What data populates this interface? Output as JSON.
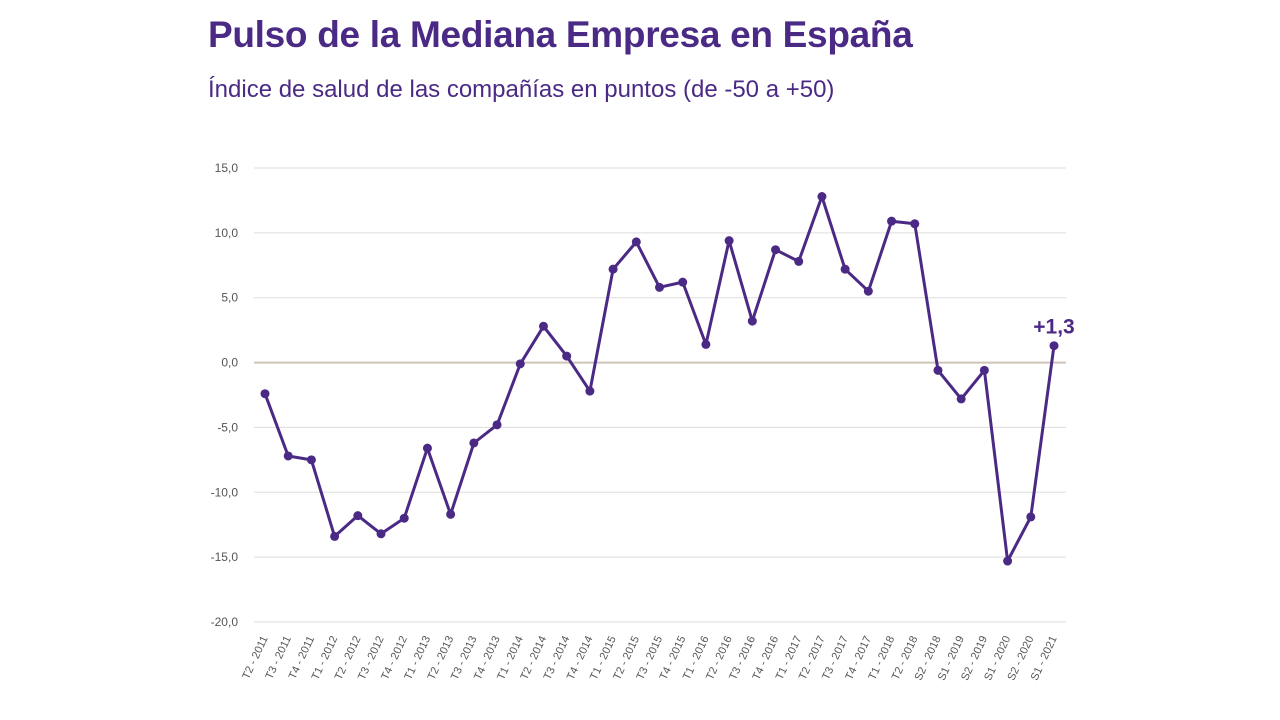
{
  "colors": {
    "line": "#4b2a85",
    "title": "#4b2a85",
    "grid": "#dddddd",
    "zero_line": "#cdc3b8",
    "tick_text": "#555555"
  },
  "chart_data": {
    "type": "line",
    "title": "Pulso de la Mediana Empresa en España",
    "subtitle": "Índice de salud de las compañías en puntos (de -50 a +50)",
    "xlabel": "",
    "ylabel": "",
    "ylim": [
      -20,
      15
    ],
    "yticks": [
      15,
      10,
      5,
      0,
      -5,
      -10,
      -15,
      -20
    ],
    "ytick_labels": [
      "15,0",
      "10,0",
      "5,0",
      "0,0",
      "-5,0",
      "-10,0",
      "-15,0",
      "-20,0"
    ],
    "grid": true,
    "categories": [
      "T2 - 2011",
      "T3 - 2011",
      "T4 - 2011",
      "T1 - 2012",
      "T2 - 2012",
      "T3 - 2012",
      "T4 - 2012",
      "T1 - 2013",
      "T2 - 2013",
      "T3 - 2013",
      "T4 - 2013",
      "T1 - 2014",
      "T2 - 2014",
      "T3 - 2014",
      "T4 - 2014",
      "T1 - 2015",
      "T2 - 2015",
      "T3 - 2015",
      "T4 - 2015",
      "T1 - 2016",
      "T2 - 2016",
      "T3 - 2016",
      "T4 - 2016",
      "T1 - 2017",
      "T2 - 2017",
      "T3 - 2017",
      "T4 - 2017",
      "T1 - 2018",
      "T2 - 2018",
      "S2 - 2018",
      "S1 - 2019",
      "S2 - 2019",
      "S1 - 2020",
      "S2 - 2020",
      "S1 - 2021"
    ],
    "series": [
      {
        "values": [
          -2.4,
          -7.2,
          -7.5,
          -13.4,
          -11.8,
          -13.2,
          -12.0,
          -6.6,
          -11.7,
          -6.2,
          -4.8,
          -0.1,
          2.8,
          0.5,
          -2.2,
          7.2,
          9.3,
          5.8,
          6.2,
          1.4,
          9.4,
          3.2,
          8.7,
          7.8,
          12.8,
          7.2,
          5.5,
          10.9,
          10.7,
          -0.6,
          -2.8,
          -0.6,
          -15.3,
          -11.9,
          1.3
        ]
      }
    ],
    "annotations": [
      {
        "category": "S1 - 2021",
        "text": "+1,3"
      }
    ]
  }
}
